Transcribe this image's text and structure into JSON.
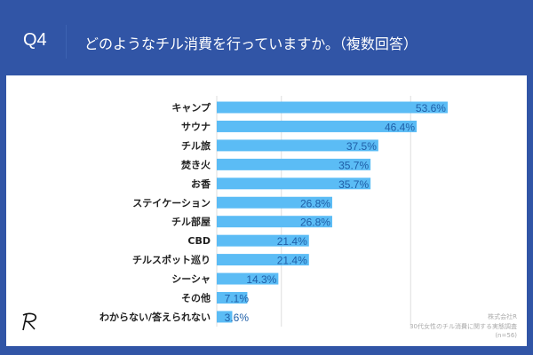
{
  "header": {
    "question_no": "Q4",
    "title": "どのようなチル消費を行っていますか。（複数回答）"
  },
  "footer": {
    "company": "株式会社R",
    "survey": "30代女性のチル消費に関する実態調査",
    "sample": "(n=56)"
  },
  "logo": {
    "text": "R"
  },
  "colors": {
    "background": "#3155a6",
    "bar": "#5bbcf5",
    "value_label": "#1f5fa8"
  },
  "chart_data": {
    "type": "bar",
    "orientation": "horizontal",
    "categories": [
      "キャンプ",
      "サウナ",
      "チル旅",
      "焚き火",
      "お香",
      "ステイケーション",
      "チル部屋",
      "CBD",
      "チルスポット巡り",
      "シーシャ",
      "その他",
      "わからない/答えられない"
    ],
    "values": [
      53.6,
      46.4,
      37.5,
      35.7,
      35.7,
      26.8,
      26.8,
      21.4,
      21.4,
      14.3,
      7.1,
      3.6
    ],
    "value_labels": [
      "53.6%",
      "46.4%",
      "37.5%",
      "35.7%",
      "35.7%",
      "26.8%",
      "26.8%",
      "21.4%",
      "21.4%",
      "14.3%",
      "7.1%",
      "3.6%"
    ],
    "unit": "%",
    "grid": true
  }
}
